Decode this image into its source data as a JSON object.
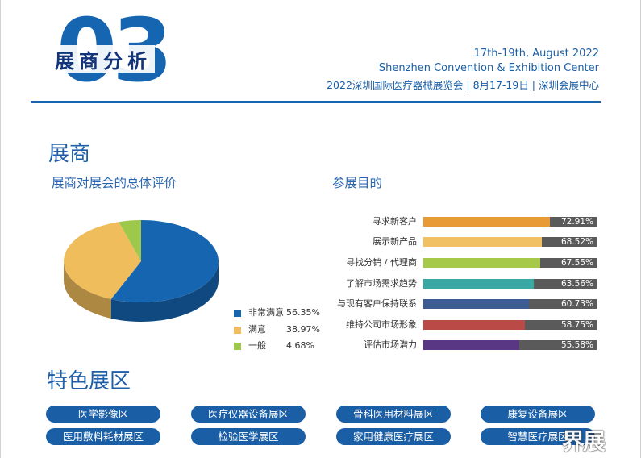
{
  "header": {
    "section_number": "03",
    "section_title": "展商分析",
    "date": "17th-19th, August 2022",
    "venue": "Shenzhen Convention & Exhibition Center",
    "event_line": "2022深圳国际医疗器械展览会 | 8月17-19日 | 深圳会展中心"
  },
  "exhibitor": {
    "heading": "展商",
    "satisfaction_title": "展商对展会的总体评价",
    "purpose_title": "参展目的"
  },
  "chart_data": [
    {
      "type": "pie",
      "title": "展商对展会的总体评价",
      "slices": [
        {
          "name": "非常满意",
          "value": 56.35,
          "label": "56.35%",
          "color": "#1565b0"
        },
        {
          "name": "满意",
          "value": 38.97,
          "label": "38.97%",
          "color": "#f0bd5c"
        },
        {
          "name": "一般",
          "value": 4.68,
          "label": "4.68%",
          "color": "#9dc84a"
        }
      ],
      "legend_position": "right"
    },
    {
      "type": "bar",
      "orientation": "horizontal",
      "title": "参展目的",
      "xlim": [
        0,
        100
      ],
      "categories": [
        "寻求新客户",
        "展示新产品",
        "寻找分销 / 代理商",
        "了解市场需求趋势",
        "与现有客户保持联系",
        "维持公司市场形象",
        "评估市场潜力"
      ],
      "values": [
        72.91,
        68.52,
        67.55,
        63.56,
        60.73,
        58.75,
        55.58
      ],
      "labels": [
        "72.91%",
        "68.52%",
        "67.55%",
        "63.56%",
        "60.73%",
        "58.75%",
        "55.58%"
      ],
      "colors": [
        "#e79a35",
        "#f0c062",
        "#a7c94a",
        "#3aa9a6",
        "#3f5c92",
        "#b94a46",
        "#5a3784"
      ]
    }
  ],
  "zones": {
    "heading": "特色展区",
    "items": [
      "医学影像区",
      "医疗仪器设备展区",
      "骨科医用材料展区",
      "康复设备展区",
      "医用敷料耗材展区",
      "检验医学展区",
      "家用健康医疗展区",
      "智慧医疗展区"
    ]
  },
  "watermark": "界展"
}
